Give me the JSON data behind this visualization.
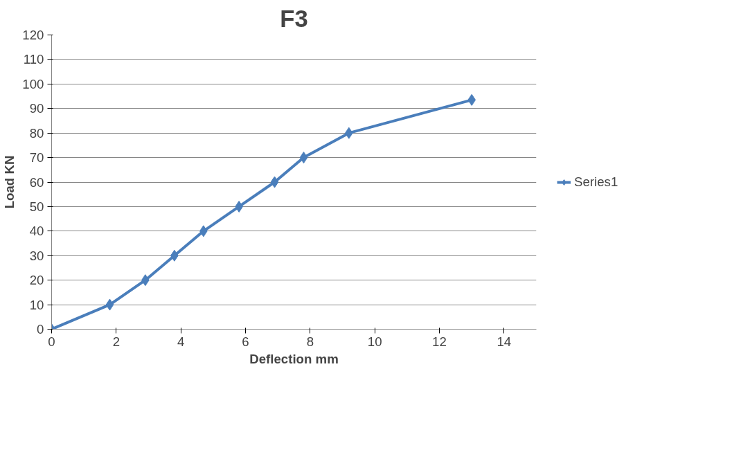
{
  "chart_data": {
    "type": "line",
    "title": "F3",
    "xlabel": "Deflection mm",
    "ylabel": "Load KN",
    "x": [
      0,
      1.8,
      2.9,
      3.8,
      4.7,
      5.8,
      6.9,
      7.8,
      9.2,
      13
    ],
    "series": [
      {
        "name": "Series1",
        "color": "#4a7ebb",
        "values": [
          0,
          10,
          20,
          30,
          40,
          50,
          60,
          70,
          80,
          93.5
        ]
      }
    ],
    "xlim": [
      0,
      15
    ],
    "xticks": [
      0,
      2,
      4,
      6,
      8,
      10,
      12,
      14
    ],
    "ylim": [
      0,
      120
    ],
    "yticks": [
      0,
      10,
      20,
      30,
      40,
      50,
      60,
      70,
      80,
      90,
      100,
      110,
      120
    ],
    "grid": "y",
    "legend": "right",
    "marker": "diamond",
    "line_style": "solid"
  }
}
